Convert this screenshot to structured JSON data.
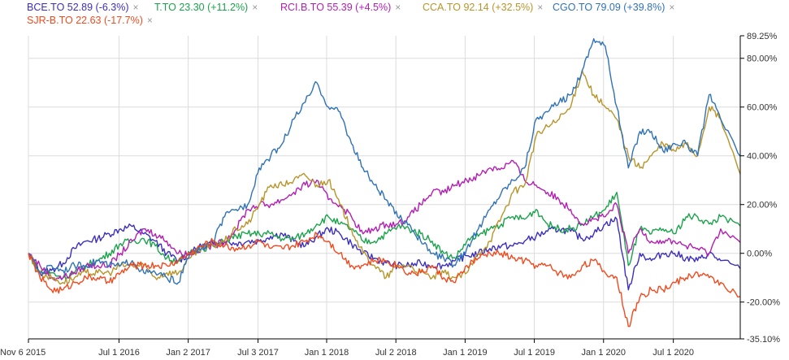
{
  "legend": [
    {
      "label": "BCE.TO 52.89 (-6.3%)",
      "color": "#3b2fbd"
    },
    {
      "label": "T.TO 23.30 (+11.2%)",
      "color": "#1ba34b"
    },
    {
      "label": "RCI.B.TO 55.39 (+4.5%)",
      "color": "#b31fb3"
    },
    {
      "label": "CCA.TO 92.14 (+32.5%)",
      "color": "#b8952a"
    },
    {
      "label": "CGO.TO 79.09 (+39.8%)",
      "color": "#2f72b8"
    },
    {
      "label": "SJR-B.TO 22.63 (-17.7%)",
      "color": "#f24a1f"
    }
  ],
  "close_icon": "×",
  "chart_data": {
    "type": "line",
    "title": "",
    "xlabel": "",
    "ylabel": "",
    "x_unit": "months since Nov 6 2015",
    "ylim": [
      -35.1,
      89.25
    ],
    "y_ticks": [
      {
        "value": 89.25,
        "label": "89.25%"
      },
      {
        "value": 80,
        "label": "80.00%"
      },
      {
        "value": 60,
        "label": "60.00%"
      },
      {
        "value": 40,
        "label": "40.00%"
      },
      {
        "value": 20,
        "label": "20.00%"
      },
      {
        "value": 0,
        "label": "0.00%"
      },
      {
        "value": -20,
        "label": "-20.00%"
      },
      {
        "value": -35.1,
        "label": "-35.10%"
      }
    ],
    "x_ticks": [
      {
        "value": 0,
        "label": "Nov 6 2015"
      },
      {
        "value": 7.85,
        "label": "Jul 1 2016"
      },
      {
        "value": 13.85,
        "label": "Jan 2 2017"
      },
      {
        "value": 19.9,
        "label": "Jul 3 2017"
      },
      {
        "value": 25.85,
        "label": "Jan 1 2018"
      },
      {
        "value": 31.85,
        "label": "Jul 2 2018"
      },
      {
        "value": 37.85,
        "label": "Jan 1 2019"
      },
      {
        "value": 43.85,
        "label": "Jul 1 2019"
      },
      {
        "value": 49.85,
        "label": "Jan 1 2020"
      },
      {
        "value": 55.9,
        "label": "Jul 1 2020"
      }
    ],
    "xlim": [
      0,
      61.7
    ],
    "grid": true,
    "legend_position": "top",
    "series": [
      {
        "name": "BCE.TO",
        "values": [
          0,
          -8,
          -7,
          -4,
          2,
          5,
          6,
          8,
          10,
          11,
          8,
          5,
          0,
          -3,
          0,
          3,
          4,
          5,
          4,
          5,
          5,
          7,
          8,
          5,
          3,
          7,
          10,
          8,
          4,
          0,
          -2,
          -4,
          -5,
          -5,
          -4,
          -5,
          -5,
          -3,
          -1,
          0,
          2,
          3,
          3,
          5,
          7,
          9,
          10,
          9,
          6,
          8,
          12,
          14,
          -15,
          0,
          -3,
          0,
          0,
          -2,
          -3,
          0,
          -3,
          -6.3
        ]
      },
      {
        "name": "T.TO",
        "values": [
          0,
          -8,
          -8,
          -10,
          -8,
          -5,
          -3,
          0,
          4,
          5,
          6,
          3,
          -2,
          -3,
          0,
          2,
          3,
          5,
          7,
          8,
          8,
          8,
          6,
          6,
          8,
          12,
          15,
          12,
          10,
          5,
          5,
          8,
          11,
          10,
          8,
          5,
          0,
          -2,
          5,
          7,
          10,
          12,
          15,
          14,
          18,
          12,
          10,
          10,
          12,
          15,
          18,
          25,
          -5,
          10,
          8,
          10,
          8,
          15,
          15,
          12,
          15,
          11.2
        ]
      },
      {
        "name": "RCI.B.TO",
        "values": [
          0,
          -5,
          -10,
          -10,
          -8,
          -5,
          -5,
          -5,
          0,
          5,
          10,
          8,
          5,
          0,
          0,
          2,
          3,
          5,
          10,
          18,
          20,
          20,
          22,
          25,
          28,
          30,
          22,
          20,
          15,
          8,
          10,
          12,
          12,
          15,
          20,
          25,
          25,
          28,
          30,
          32,
          35,
          35,
          38,
          30,
          28,
          25,
          22,
          18,
          12,
          14,
          15,
          20,
          0,
          10,
          5,
          5,
          5,
          3,
          2,
          0,
          10,
          4.5
        ]
      },
      {
        "name": "CCA.TO",
        "values": [
          0,
          -8,
          -10,
          -12,
          -10,
          -8,
          -8,
          -8,
          -5,
          -5,
          -5,
          -10,
          -8,
          -8,
          -2,
          2,
          3,
          5,
          10,
          12,
          20,
          28,
          28,
          30,
          32,
          28,
          30,
          20,
          10,
          0,
          -5,
          -10,
          -5,
          -5,
          -8,
          -10,
          -8,
          -10,
          -8,
          0,
          5,
          15,
          25,
          28,
          48,
          52,
          55,
          60,
          75,
          65,
          60,
          55,
          40,
          35,
          40,
          45,
          42,
          45,
          40,
          60,
          55,
          32.5
        ]
      },
      {
        "name": "CGO.TO",
        "values": [
          0,
          -8,
          -5,
          -7,
          -5,
          -5,
          -3,
          -5,
          -5,
          -3,
          -8,
          -8,
          -10,
          -12,
          0,
          2,
          5,
          15,
          18,
          20,
          35,
          40,
          45,
          55,
          62,
          70,
          60,
          58,
          45,
          35,
          28,
          22,
          15,
          12,
          5,
          0,
          -2,
          -5,
          2,
          10,
          18,
          25,
          30,
          35,
          55,
          58,
          62,
          65,
          75,
          88,
          85,
          60,
          35,
          50,
          50,
          42,
          45,
          45,
          40,
          65,
          55,
          39.8
        ]
      },
      {
        "name": "SJR-B.TO",
        "values": [
          0,
          -10,
          -15,
          -15,
          -12,
          -10,
          -10,
          -12,
          -8,
          -5,
          -5,
          -5,
          -5,
          -3,
          0,
          3,
          5,
          3,
          2,
          3,
          5,
          2,
          2,
          3,
          5,
          8,
          5,
          0,
          -5,
          -5,
          -3,
          -3,
          -5,
          -8,
          -8,
          -5,
          -10,
          -12,
          -5,
          -2,
          0,
          0,
          -2,
          -3,
          -5,
          -5,
          -8,
          -10,
          -5,
          -3,
          -8,
          -10,
          -30,
          -18,
          -15,
          -15,
          -12,
          -10,
          -8,
          -10,
          -12,
          -17.7
        ]
      }
    ]
  }
}
